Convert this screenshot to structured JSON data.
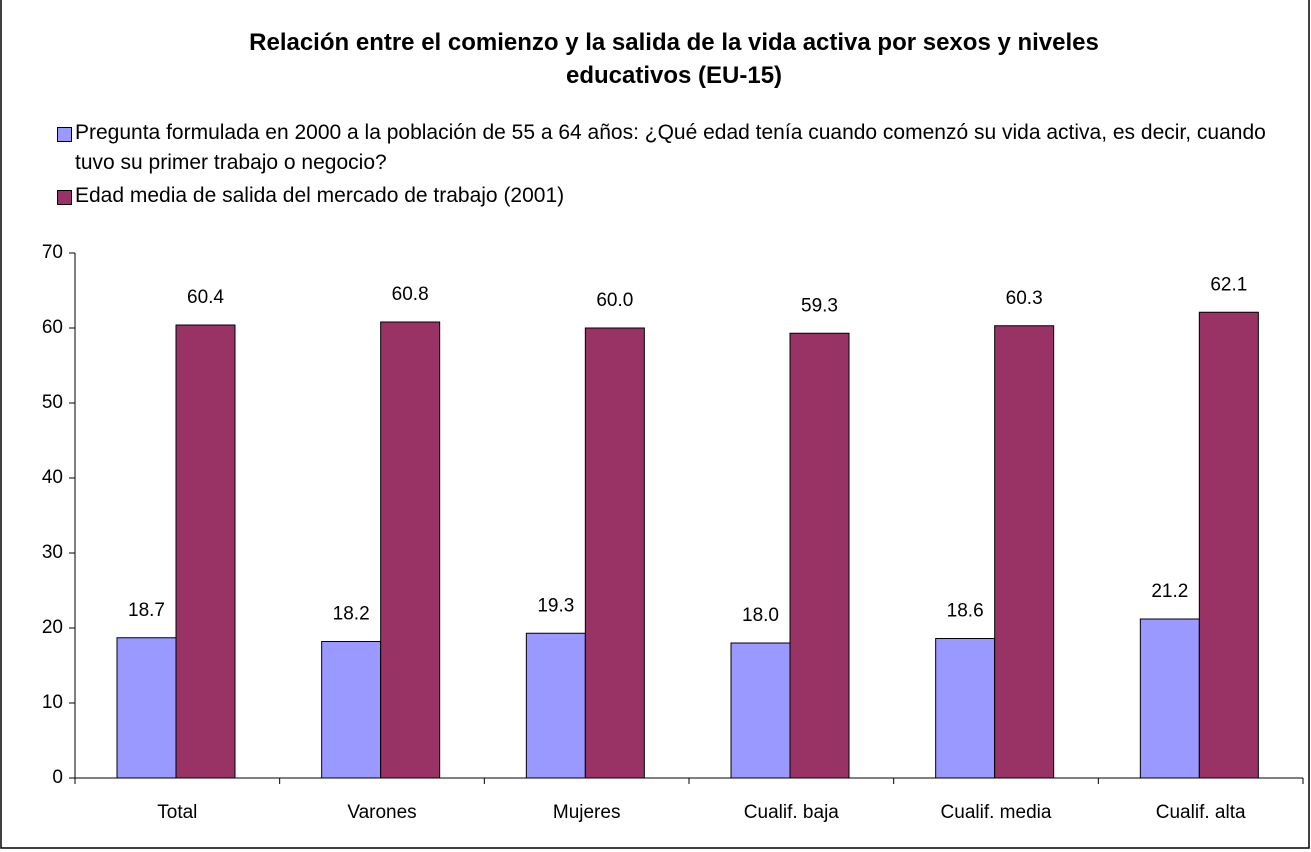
{
  "chart_data": {
    "type": "bar",
    "title": "Relación entre el comienzo y la salida de la vida activa por sexos y niveles educativos (EU-15)",
    "categories": [
      "Total",
      "Varones",
      "Mujeres",
      "Cualif. baja",
      "Cualif. media",
      "Cualif. alta"
    ],
    "series": [
      {
        "name": "Pregunta formulada en 2000 a la población de 55 a 64 años: ¿Qué edad tenía cuando comenzó su vida activa, es decir, cuando tuvo su primer trabajo o negocio?",
        "color": "#9999ff",
        "values": [
          18.7,
          18.2,
          19.3,
          18.0,
          18.6,
          21.2
        ],
        "value_labels": [
          "18.7",
          "18.2",
          "19.3",
          "18.0",
          "18.6",
          "21.2"
        ]
      },
      {
        "name": "Edad media de salida del mercado de trabajo (2001)",
        "color": "#993366",
        "values": [
          60.4,
          60.8,
          60.0,
          59.3,
          60.3,
          62.1
        ],
        "value_labels": [
          "60.4",
          "60.8",
          "60.0",
          "59.3",
          "60.3",
          "62.1"
        ]
      }
    ],
    "ylim": [
      0,
      70
    ],
    "yticks": [
      0,
      10,
      20,
      30,
      40,
      50,
      60,
      70
    ],
    "grid": false
  }
}
